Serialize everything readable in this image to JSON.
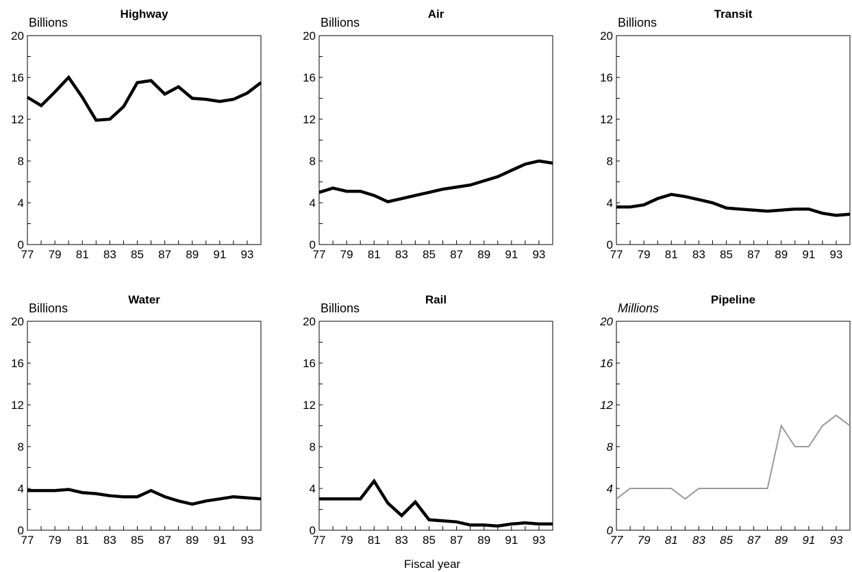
{
  "figure": {
    "xlabel": "Fiscal year"
  },
  "chart_data": [
    {
      "type": "line",
      "title": "Highway",
      "ylabel": "Billions",
      "ylim": [
        0,
        20
      ],
      "yticks": [
        0,
        4,
        8,
        12,
        16,
        20
      ],
      "xlim": [
        77,
        94
      ],
      "xticks": [
        77,
        79,
        81,
        83,
        85,
        87,
        89,
        91,
        93
      ],
      "x": [
        77,
        78,
        79,
        80,
        81,
        82,
        83,
        84,
        85,
        86,
        87,
        88,
        89,
        90,
        91,
        92,
        93,
        94
      ],
      "series": [
        {
          "values": [
            14.1,
            13.3,
            14.6,
            16.0,
            14.1,
            11.9,
            12.0,
            13.2,
            15.5,
            15.7,
            14.4,
            15.1,
            14.0,
            13.9,
            13.7,
            13.9,
            14.5,
            15.5
          ]
        }
      ],
      "line_color": "#000000"
    },
    {
      "type": "line",
      "title": "Air",
      "ylabel": "Billions",
      "ylim": [
        0,
        20
      ],
      "yticks": [
        0,
        4,
        8,
        12,
        16,
        20
      ],
      "xlim": [
        77,
        94
      ],
      "xticks": [
        77,
        79,
        81,
        83,
        85,
        87,
        89,
        91,
        93
      ],
      "x": [
        77,
        78,
        79,
        80,
        81,
        82,
        83,
        84,
        85,
        86,
        87,
        88,
        89,
        90,
        91,
        92,
        93,
        94
      ],
      "series": [
        {
          "values": [
            5.0,
            5.4,
            5.1,
            5.1,
            4.7,
            4.1,
            4.4,
            4.7,
            5.0,
            5.3,
            5.5,
            5.7,
            6.1,
            6.5,
            7.1,
            7.7,
            8.0,
            7.8
          ]
        }
      ],
      "line_color": "#000000"
    },
    {
      "type": "line",
      "title": "Transit",
      "ylabel": "Billions",
      "ylim": [
        0,
        20
      ],
      "yticks": [
        0,
        4,
        8,
        12,
        16,
        20
      ],
      "xlim": [
        77,
        94
      ],
      "xticks": [
        77,
        79,
        81,
        83,
        85,
        87,
        89,
        91,
        93
      ],
      "x": [
        77,
        78,
        79,
        80,
        81,
        82,
        83,
        84,
        85,
        86,
        87,
        88,
        89,
        90,
        91,
        92,
        93,
        94
      ],
      "series": [
        {
          "values": [
            3.6,
            3.6,
            3.8,
            4.4,
            4.8,
            4.6,
            4.3,
            4.0,
            3.5,
            3.4,
            3.3,
            3.2,
            3.3,
            3.4,
            3.4,
            3.0,
            2.8,
            2.9
          ]
        }
      ],
      "line_color": "#000000"
    },
    {
      "type": "line",
      "title": "Water",
      "ylabel": "Billions",
      "ylim": [
        0,
        20
      ],
      "yticks": [
        0,
        4,
        8,
        12,
        16,
        20
      ],
      "xlim": [
        77,
        94
      ],
      "xticks": [
        77,
        79,
        81,
        83,
        85,
        87,
        89,
        91,
        93
      ],
      "x": [
        77,
        78,
        79,
        80,
        81,
        82,
        83,
        84,
        85,
        86,
        87,
        88,
        89,
        90,
        91,
        92,
        93,
        94
      ],
      "series": [
        {
          "values": [
            3.8,
            3.8,
            3.8,
            3.9,
            3.6,
            3.5,
            3.3,
            3.2,
            3.2,
            3.8,
            3.2,
            2.8,
            2.5,
            2.8,
            3.0,
            3.2,
            3.1,
            3.0
          ]
        }
      ],
      "line_color": "#000000"
    },
    {
      "type": "line",
      "title": "Rail",
      "ylabel": "Billions",
      "ylim": [
        0,
        20
      ],
      "yticks": [
        0,
        4,
        8,
        12,
        16,
        20
      ],
      "xlim": [
        77,
        94
      ],
      "xticks": [
        77,
        79,
        81,
        83,
        85,
        87,
        89,
        91,
        93
      ],
      "x": [
        77,
        78,
        79,
        80,
        81,
        82,
        83,
        84,
        85,
        86,
        87,
        88,
        89,
        90,
        91,
        92,
        93,
        94
      ],
      "series": [
        {
          "values": [
            3.0,
            3.0,
            3.0,
            3.0,
            4.7,
            2.6,
            1.4,
            2.7,
            1.0,
            0.9,
            0.8,
            0.5,
            0.5,
            0.4,
            0.6,
            0.7,
            0.6,
            0.6
          ]
        }
      ],
      "line_color": "#000000"
    },
    {
      "type": "line",
      "title": "Pipeline",
      "ylabel": "Millions",
      "ylim": [
        0,
        20
      ],
      "yticks": [
        0,
        4,
        8,
        12,
        16,
        20
      ],
      "xlim": [
        77,
        94
      ],
      "xticks": [
        77,
        79,
        81,
        83,
        85,
        87,
        89,
        91,
        93
      ],
      "x": [
        77,
        78,
        79,
        80,
        81,
        82,
        83,
        84,
        85,
        86,
        87,
        88,
        89,
        90,
        91,
        92,
        93,
        94
      ],
      "series": [
        {
          "values": [
            3,
            4,
            4,
            4,
            4,
            3,
            4,
            4,
            4,
            4,
            4,
            4,
            10,
            8,
            8,
            10,
            11,
            10
          ]
        }
      ],
      "line_color": "#999999",
      "italic_labels": true
    }
  ]
}
